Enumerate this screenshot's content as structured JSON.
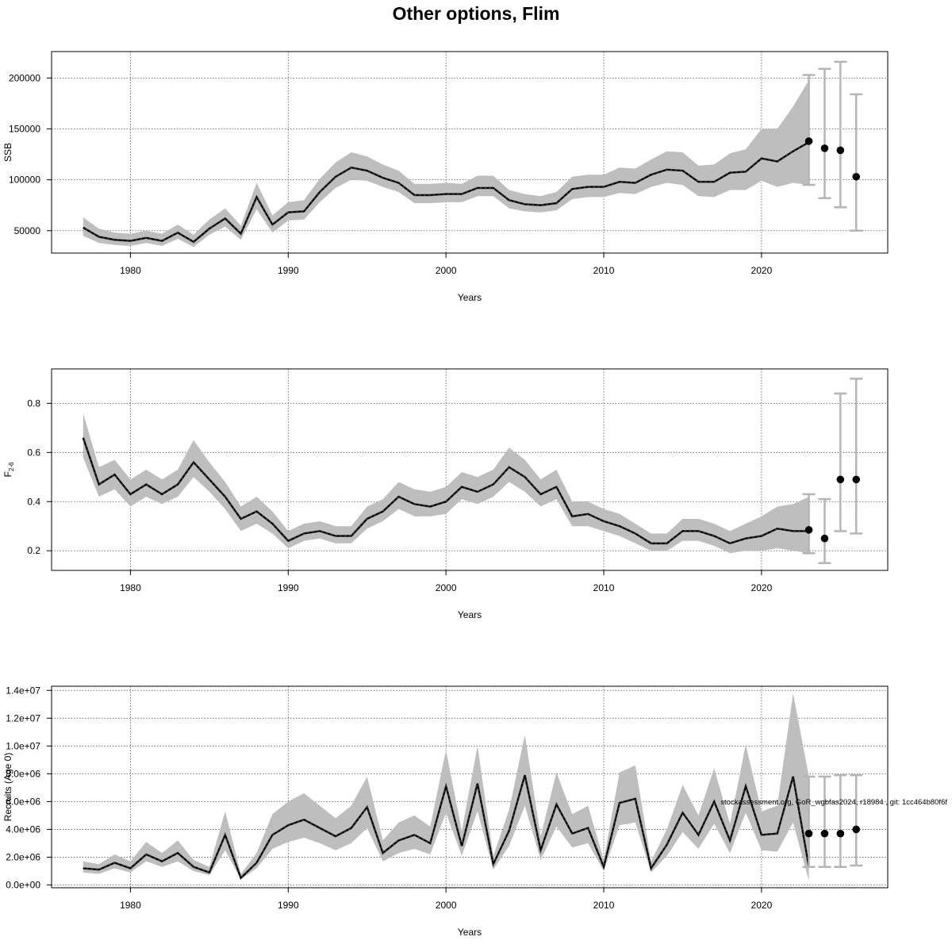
{
  "page": {
    "title": "Other options, Flim"
  },
  "footer": {
    "credit": "stockassessment.org, GoR_wgbfas2024, r18984 , git: 1cc464b80f6f"
  },
  "colors": {
    "band": "#bebebe",
    "line": "#000000",
    "errorbar": "#b5b5b5",
    "grid": "#555555"
  },
  "chart_data": [
    {
      "type": "line",
      "name": "ssb",
      "title": "",
      "xlabel": "Years",
      "ylabel": "SSB",
      "xlim": [
        1975,
        2028
      ],
      "ylim": [
        28000,
        226000
      ],
      "xticks": [
        1980,
        1990,
        2000,
        2010,
        2020
      ],
      "xtick_labels": [
        "1980",
        "1990",
        "2000",
        "2010",
        "2020"
      ],
      "yticks": [
        50000,
        100000,
        150000,
        200000
      ],
      "ytick_labels": [
        "50000",
        "100000",
        "150000",
        "200000"
      ],
      "grid": true,
      "x": [
        1977,
        1978,
        1979,
        1980,
        1981,
        1982,
        1983,
        1984,
        1985,
        1986,
        1987,
        1988,
        1989,
        1990,
        1991,
        1992,
        1993,
        1994,
        1995,
        1996,
        1997,
        1998,
        1999,
        2000,
        2001,
        2002,
        2003,
        2004,
        2005,
        2006,
        2007,
        2008,
        2009,
        2010,
        2011,
        2012,
        2013,
        2014,
        2015,
        2016,
        2017,
        2018,
        2019,
        2020,
        2021,
        2022,
        2023
      ],
      "estimate": [
        53000,
        44000,
        41000,
        40000,
        43000,
        40000,
        48000,
        39000,
        52000,
        62000,
        47000,
        83000,
        56000,
        68000,
        69000,
        88000,
        103000,
        112000,
        109000,
        102000,
        97000,
        85000,
        85000,
        86000,
        86000,
        92000,
        92000,
        80000,
        76000,
        75000,
        77000,
        91000,
        93000,
        93000,
        98000,
        97000,
        105000,
        110000,
        109000,
        98000,
        98000,
        107000,
        108000,
        121000,
        118000,
        128000,
        137000
      ],
      "lower": [
        45000,
        38000,
        36000,
        35000,
        38000,
        35000,
        42000,
        34000,
        46000,
        54000,
        41000,
        71000,
        48000,
        60000,
        61000,
        78000,
        92000,
        100000,
        99000,
        93000,
        88000,
        77000,
        77000,
        78000,
        78000,
        84000,
        84000,
        72000,
        69000,
        68000,
        70000,
        81000,
        83000,
        83000,
        87000,
        86000,
        93000,
        97000,
        95000,
        84000,
        83000,
        90000,
        90000,
        99000,
        93000,
        97000,
        95000
      ],
      "upper": [
        63000,
        52000,
        48000,
        47000,
        50000,
        47000,
        56000,
        46000,
        61000,
        72000,
        55000,
        97000,
        65000,
        78000,
        80000,
        101000,
        117000,
        127000,
        123000,
        115000,
        109000,
        96000,
        96000,
        97000,
        96000,
        104000,
        104000,
        90000,
        86000,
        84000,
        88000,
        103000,
        105000,
        105000,
        112000,
        111000,
        120000,
        128000,
        127000,
        114000,
        115000,
        126000,
        130000,
        150000,
        150000,
        172000,
        198000
      ],
      "forecast": {
        "x": [
          2023,
          2024,
          2025,
          2026
        ],
        "median": [
          138000,
          131000,
          129000,
          103000
        ],
        "lower": [
          95000,
          82000,
          73000,
          50000
        ],
        "upper": [
          203000,
          209000,
          216000,
          184000
        ]
      }
    },
    {
      "type": "line",
      "name": "fbar",
      "title": "",
      "xlabel": "Years",
      "ylabel": "F",
      "ylabel_sub": "2-6",
      "xlim": [
        1975,
        2028
      ],
      "ylim": [
        0.12,
        0.94
      ],
      "xticks": [
        1980,
        1990,
        2000,
        2010,
        2020
      ],
      "xtick_labels": [
        "1980",
        "1990",
        "2000",
        "2010",
        "2020"
      ],
      "yticks": [
        0.2,
        0.4,
        0.6,
        0.8
      ],
      "ytick_labels": [
        "0.2",
        "0.4",
        "0.6",
        "0.8"
      ],
      "grid": true,
      "x": [
        1977,
        1978,
        1979,
        1980,
        1981,
        1982,
        1983,
        1984,
        1985,
        1986,
        1987,
        1988,
        1989,
        1990,
        1991,
        1992,
        1993,
        1994,
        1995,
        1996,
        1997,
        1998,
        1999,
        2000,
        2001,
        2002,
        2003,
        2004,
        2005,
        2006,
        2007,
        2008,
        2009,
        2010,
        2011,
        2012,
        2013,
        2014,
        2015,
        2016,
        2017,
        2018,
        2019,
        2020,
        2021,
        2022,
        2023
      ],
      "estimate": [
        0.66,
        0.47,
        0.51,
        0.43,
        0.47,
        0.43,
        0.47,
        0.56,
        0.49,
        0.42,
        0.33,
        0.36,
        0.31,
        0.24,
        0.27,
        0.28,
        0.26,
        0.26,
        0.33,
        0.36,
        0.42,
        0.39,
        0.38,
        0.4,
        0.46,
        0.44,
        0.47,
        0.54,
        0.5,
        0.43,
        0.46,
        0.34,
        0.35,
        0.32,
        0.3,
        0.27,
        0.23,
        0.23,
        0.28,
        0.28,
        0.26,
        0.23,
        0.25,
        0.26,
        0.29,
        0.28,
        0.28
      ],
      "lower": [
        0.58,
        0.42,
        0.45,
        0.38,
        0.42,
        0.39,
        0.42,
        0.5,
        0.44,
        0.37,
        0.28,
        0.31,
        0.27,
        0.21,
        0.24,
        0.25,
        0.23,
        0.23,
        0.29,
        0.32,
        0.37,
        0.34,
        0.34,
        0.35,
        0.41,
        0.39,
        0.42,
        0.48,
        0.44,
        0.38,
        0.41,
        0.3,
        0.3,
        0.28,
        0.26,
        0.23,
        0.2,
        0.2,
        0.24,
        0.24,
        0.22,
        0.19,
        0.2,
        0.2,
        0.21,
        0.2,
        0.19
      ],
      "upper": [
        0.76,
        0.54,
        0.57,
        0.49,
        0.53,
        0.49,
        0.53,
        0.65,
        0.56,
        0.48,
        0.38,
        0.42,
        0.36,
        0.28,
        0.31,
        0.32,
        0.3,
        0.3,
        0.38,
        0.41,
        0.48,
        0.45,
        0.44,
        0.46,
        0.52,
        0.5,
        0.53,
        0.62,
        0.57,
        0.49,
        0.53,
        0.4,
        0.4,
        0.37,
        0.35,
        0.31,
        0.27,
        0.27,
        0.33,
        0.33,
        0.31,
        0.28,
        0.31,
        0.34,
        0.38,
        0.39,
        0.42
      ],
      "forecast": {
        "x": [
          2023,
          2024,
          2025,
          2026
        ],
        "median": [
          0.285,
          0.25,
          0.49,
          0.49
        ],
        "lower": [
          0.19,
          0.15,
          0.28,
          0.27
        ],
        "upper": [
          0.43,
          0.41,
          0.84,
          0.9
        ]
      }
    },
    {
      "type": "line",
      "name": "recruits",
      "title": "",
      "xlabel": "Years",
      "ylabel": "Recruits (Age 0)",
      "xlim": [
        1975,
        2028
      ],
      "ylim": [
        -200000,
        14300000
      ],
      "xticks": [
        1980,
        1990,
        2000,
        2010,
        2020
      ],
      "xtick_labels": [
        "1980",
        "1990",
        "2000",
        "2010",
        "2020"
      ],
      "yticks": [
        0,
        2000000,
        4000000,
        6000000,
        8000000,
        10000000,
        12000000,
        14000000
      ],
      "ytick_labels": [
        "0.0e+00",
        "2.0e+06",
        "4.0e+06",
        "6.0e+06",
        "8.0e+06",
        "1.0e+07",
        "1.2e+07",
        "1.4e+07"
      ],
      "grid": true,
      "x": [
        1977,
        1978,
        1979,
        1980,
        1981,
        1982,
        1983,
        1984,
        1985,
        1986,
        1987,
        1988,
        1989,
        1990,
        1991,
        1992,
        1993,
        1994,
        1995,
        1996,
        1997,
        1998,
        1999,
        2000,
        2001,
        2002,
        2003,
        2004,
        2005,
        2006,
        2007,
        2008,
        2009,
        2010,
        2011,
        2012,
        2013,
        2014,
        2015,
        2016,
        2017,
        2018,
        2019,
        2020,
        2021,
        2022,
        2023
      ],
      "estimate": [
        1200000,
        1100000,
        1600000,
        1200000,
        2200000,
        1700000,
        2300000,
        1300000,
        900000,
        3600000,
        500000,
        1600000,
        3600000,
        4300000,
        4700000,
        4100000,
        3500000,
        4100000,
        5600000,
        2300000,
        3200000,
        3600000,
        3000000,
        7100000,
        2800000,
        7300000,
        1500000,
        3900000,
        7900000,
        2500000,
        5800000,
        3700000,
        4100000,
        1300000,
        5900000,
        6200000,
        1200000,
        2900000,
        5200000,
        3600000,
        6000000,
        3200000,
        7100000,
        3600000,
        3700000,
        7800000,
        1300000
      ],
      "lower": [
        900000,
        800000,
        1200000,
        900000,
        1700000,
        1300000,
        1700000,
        1000000,
        700000,
        2500000,
        400000,
        1200000,
        2600000,
        3100000,
        3400000,
        3000000,
        2500000,
        3000000,
        4100000,
        1700000,
        2300000,
        2600000,
        2200000,
        5200000,
        2100000,
        5300000,
        1100000,
        2800000,
        5700000,
        1800000,
        4200000,
        2700000,
        3000000,
        1000000,
        4300000,
        4500000,
        900000,
        2100000,
        3800000,
        2600000,
        4400000,
        2300000,
        5200000,
        2500000,
        2400000,
        4500000,
        300000
      ],
      "upper": [
        1700000,
        1500000,
        2200000,
        1700000,
        3100000,
        2300000,
        3200000,
        1800000,
        1300000,
        5300000,
        800000,
        2300000,
        5100000,
        6000000,
        6600000,
        5700000,
        4800000,
        5700000,
        7800000,
        3200000,
        4500000,
        5000000,
        4200000,
        9700000,
        3900000,
        10000000,
        2100000,
        5400000,
        10800000,
        3500000,
        8100000,
        5100000,
        5700000,
        1800000,
        8100000,
        8600000,
        1700000,
        4000000,
        7200000,
        5000000,
        8400000,
        4400000,
        10100000,
        5300000,
        5700000,
        13800000,
        7800000
      ],
      "forecast": {
        "x": [
          2023,
          2024,
          2025,
          2026
        ],
        "median": [
          3700000,
          3700000,
          3700000,
          4000000
        ],
        "lower": [
          1300000,
          1300000,
          1300000,
          1400000
        ],
        "upper": [
          7800000,
          7800000,
          7900000,
          7900000
        ]
      }
    }
  ]
}
